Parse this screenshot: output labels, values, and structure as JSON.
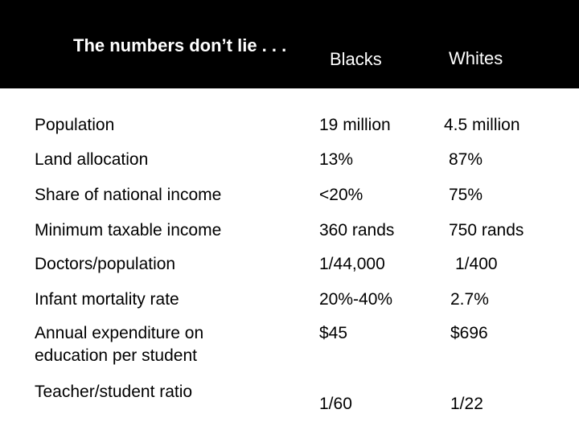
{
  "title": "The numbers don’t lie . . .",
  "columns": [
    "Blacks",
    "Whites"
  ],
  "rows": [
    {
      "label": "Population",
      "blacks": "19 million",
      "whites": "4.5 million"
    },
    {
      "label": "Land allocation",
      "blacks": "13%",
      "whites": "87%"
    },
    {
      "label": "Share of national income",
      "blacks": "<20%",
      "whites": "75%"
    },
    {
      "label": "Minimum taxable income",
      "blacks": "360 rands",
      "whites": "750 rands"
    },
    {
      "label": "Doctors/population",
      "blacks": "1/44,000",
      "whites": "1/400"
    },
    {
      "label": "Infant mortality rate",
      "blacks": "20%-40%",
      "whites": "2.7%"
    },
    {
      "label": "Annual expenditure on education per student",
      "blacks": "$45",
      "whites": "$696"
    },
    {
      "label": "Teacher/student ratio",
      "blacks": "1/60",
      "whites": "1/22"
    }
  ]
}
